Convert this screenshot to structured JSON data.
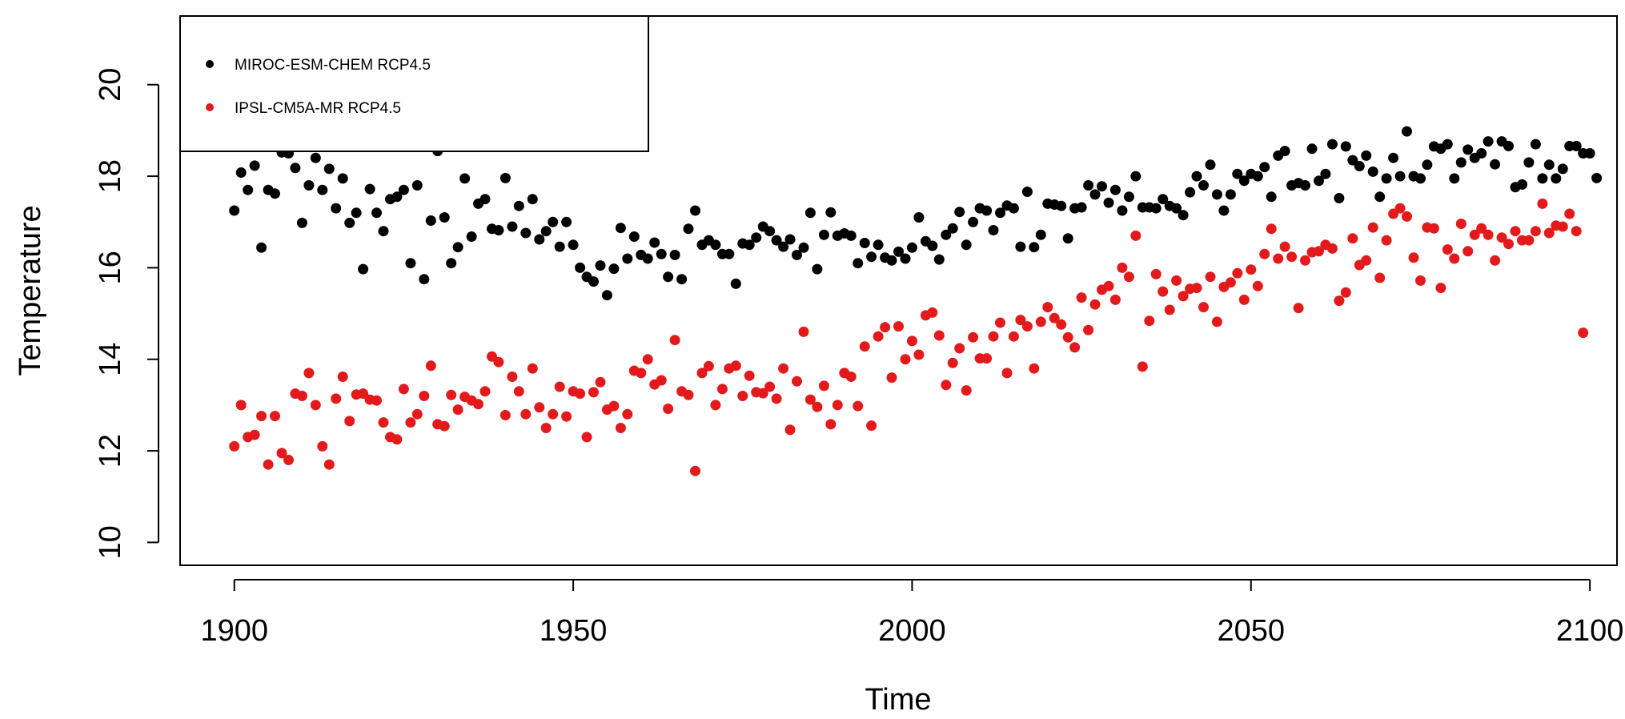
{
  "chart_data": {
    "type": "scatter",
    "title": "",
    "xlabel": "Time",
    "ylabel": "Temperature",
    "xlim": [
      1892,
      2104
    ],
    "ylim": [
      9.5,
      21.5
    ],
    "x_ticks": [
      1900,
      1950,
      2000,
      2050,
      2100
    ],
    "y_ticks": [
      10,
      12,
      14,
      16,
      18,
      20
    ],
    "grid": false,
    "legend_position": "top-left",
    "series": [
      {
        "name": "MIROC-ESM-CHEM RCP4.5",
        "color": "#000000",
        "x_start": 1900,
        "values": [
          17.25,
          18.08,
          17.7,
          18.23,
          16.44,
          17.7,
          17.62,
          18.52,
          18.5,
          18.18,
          16.98,
          17.8,
          18.4,
          17.7,
          18.16,
          17.3,
          17.95,
          16.98,
          17.2,
          15.97,
          17.72,
          17.2,
          16.8,
          17.5,
          17.55,
          17.7,
          16.1,
          17.8,
          15.75,
          17.03,
          18.55,
          17.1,
          16.1,
          16.45,
          17.95,
          16.68,
          17.4,
          17.5,
          16.85,
          16.82,
          17.96,
          16.9,
          17.35,
          16.76,
          17.5,
          16.62,
          16.8,
          17.0,
          16.46,
          17.0,
          16.5,
          16.0,
          15.8,
          15.7,
          16.05,
          15.4,
          15.98,
          16.87,
          16.2,
          16.68,
          16.28,
          16.2,
          16.55,
          16.3,
          15.8,
          16.28,
          15.75,
          16.85,
          17.25,
          16.5,
          16.6,
          16.5,
          16.3,
          16.3,
          15.65,
          16.53,
          16.5,
          16.66,
          16.9,
          16.8,
          16.6,
          16.46,
          16.62,
          16.28,
          16.44,
          17.2,
          15.97,
          16.72,
          17.21,
          16.7,
          16.75,
          16.7,
          16.1,
          16.54,
          16.24,
          16.5,
          16.22,
          16.16,
          16.35,
          16.2,
          16.44,
          17.1,
          16.58,
          16.48,
          16.18,
          16.72,
          16.86,
          17.22,
          16.5,
          17.0,
          17.3,
          17.25,
          16.82,
          17.2,
          17.36,
          17.3,
          16.46,
          17.66,
          16.45,
          16.72,
          17.4,
          17.38,
          17.35,
          16.64,
          17.3,
          17.32,
          17.8,
          17.6,
          17.78,
          17.42,
          17.7,
          17.25,
          17.55,
          18.0,
          17.32,
          17.32,
          17.3,
          17.5,
          17.35,
          17.3,
          17.15,
          17.65,
          18.0,
          17.8,
          18.25,
          17.6,
          17.25,
          17.6,
          18.05,
          17.9,
          18.05,
          18.0,
          18.2,
          17.55,
          18.45,
          18.55,
          17.8,
          17.85,
          17.8,
          18.6,
          17.9,
          18.05,
          18.7,
          17.52,
          18.65,
          18.35,
          18.22,
          18.45,
          18.1,
          17.55,
          17.95,
          18.4,
          18.0,
          18.98,
          18.0,
          17.95,
          18.25,
          18.65,
          18.6,
          18.7,
          17.95,
          18.3,
          18.58,
          18.4,
          18.5,
          18.76,
          18.26,
          18.76,
          18.66,
          17.76,
          17.82,
          18.3,
          18.7,
          17.95,
          18.25,
          17.95,
          18.16,
          18.66,
          18.66,
          18.5,
          18.5,
          17.96
        ]
      },
      {
        "name": "IPSL-CM5A-MR RCP4.5",
        "color": "#e31a1c",
        "x_start": 1900,
        "values": [
          12.1,
          13.0,
          12.3,
          12.35,
          12.76,
          11.7,
          12.76,
          11.95,
          11.8,
          13.25,
          13.2,
          13.7,
          13.0,
          12.1,
          11.7,
          13.14,
          13.62,
          12.65,
          13.23,
          13.25,
          13.12,
          13.1,
          12.62,
          12.3,
          12.25,
          13.35,
          12.62,
          12.8,
          13.2,
          13.86,
          12.58,
          12.54,
          13.22,
          12.9,
          13.18,
          13.1,
          13.02,
          13.3,
          14.06,
          13.94,
          12.78,
          13.62,
          13.3,
          12.8,
          13.8,
          12.95,
          12.5,
          12.8,
          13.4,
          12.75,
          13.3,
          13.25,
          12.3,
          13.28,
          13.5,
          12.9,
          12.98,
          12.5,
          12.8,
          13.75,
          13.7,
          14.0,
          13.45,
          13.54,
          12.92,
          14.42,
          13.3,
          13.22,
          11.56,
          13.7,
          13.85,
          13.0,
          13.35,
          13.8,
          13.86,
          13.2,
          13.64,
          13.28,
          13.26,
          13.4,
          13.14,
          13.8,
          12.46,
          13.52,
          14.6,
          13.12,
          12.96,
          13.42,
          12.58,
          13.0,
          13.7,
          13.62,
          12.98,
          14.28,
          12.55,
          14.5,
          14.7,
          13.6,
          14.72,
          14.0,
          14.4,
          14.1,
          14.96,
          15.02,
          14.52,
          13.44,
          13.92,
          14.24,
          13.32,
          14.48,
          14.02,
          14.02,
          14.5,
          14.8,
          13.7,
          14.5,
          14.86,
          14.72,
          13.8,
          14.82,
          15.14,
          14.9,
          14.76,
          14.48,
          14.26,
          15.35,
          14.64,
          15.2,
          15.52,
          15.6,
          15.3,
          16.0,
          15.8,
          16.7,
          13.84,
          14.84,
          15.86,
          15.48,
          15.08,
          15.72,
          15.38,
          15.54,
          15.56,
          15.14,
          15.8,
          14.82,
          15.58,
          15.68,
          15.88,
          15.3,
          15.96,
          15.6,
          16.3,
          16.85,
          16.2,
          16.46,
          16.24,
          15.12,
          16.16,
          16.34,
          16.36,
          16.5,
          16.42,
          15.28,
          15.46,
          16.64,
          16.06,
          16.16,
          16.88,
          15.78,
          16.6,
          17.18,
          17.3,
          17.12,
          16.22,
          15.72,
          16.88,
          16.86,
          15.56,
          16.4,
          16.2,
          16.96,
          16.36,
          16.72,
          16.86,
          16.72,
          16.16,
          16.66,
          16.52,
          16.8,
          16.6,
          16.6,
          16.8,
          17.4,
          16.76,
          16.92,
          16.9,
          17.18,
          16.8,
          14.58
        ]
      }
    ]
  }
}
